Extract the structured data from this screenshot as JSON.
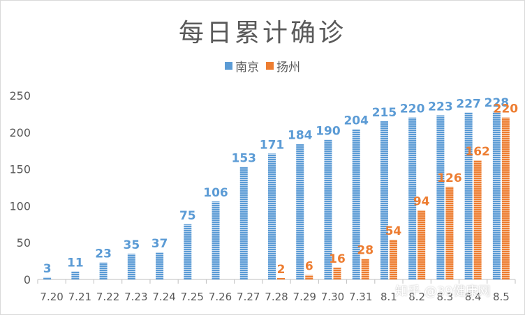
{
  "chart_data": {
    "type": "bar",
    "title": "每日累计确诊",
    "categories": [
      "7.20",
      "7.21",
      "7.22",
      "7.23",
      "7.24",
      "7.25",
      "7.26",
      "7.27",
      "7.28",
      "7.29",
      "7.30",
      "7.31",
      "8.1",
      "8.2",
      "8.3",
      "8.4",
      "8.5"
    ],
    "series": [
      {
        "name": "南京",
        "color": "#5b9bd5",
        "values": [
          3,
          11,
          23,
          35,
          37,
          75,
          106,
          153,
          171,
          184,
          190,
          204,
          215,
          220,
          223,
          227,
          228
        ]
      },
      {
        "name": "扬州",
        "color": "#ed7d31",
        "values": [
          null,
          null,
          null,
          null,
          null,
          null,
          null,
          null,
          2,
          6,
          16,
          28,
          54,
          94,
          126,
          162,
          220
        ]
      }
    ],
    "ylim": [
      0,
      250
    ],
    "yticks": [
      0,
      50,
      100,
      150,
      200,
      250
    ],
    "xlabel": "",
    "ylabel": "",
    "legend_position": "top-center",
    "grid": false
  },
  "watermark": "知乎 @39健康网"
}
